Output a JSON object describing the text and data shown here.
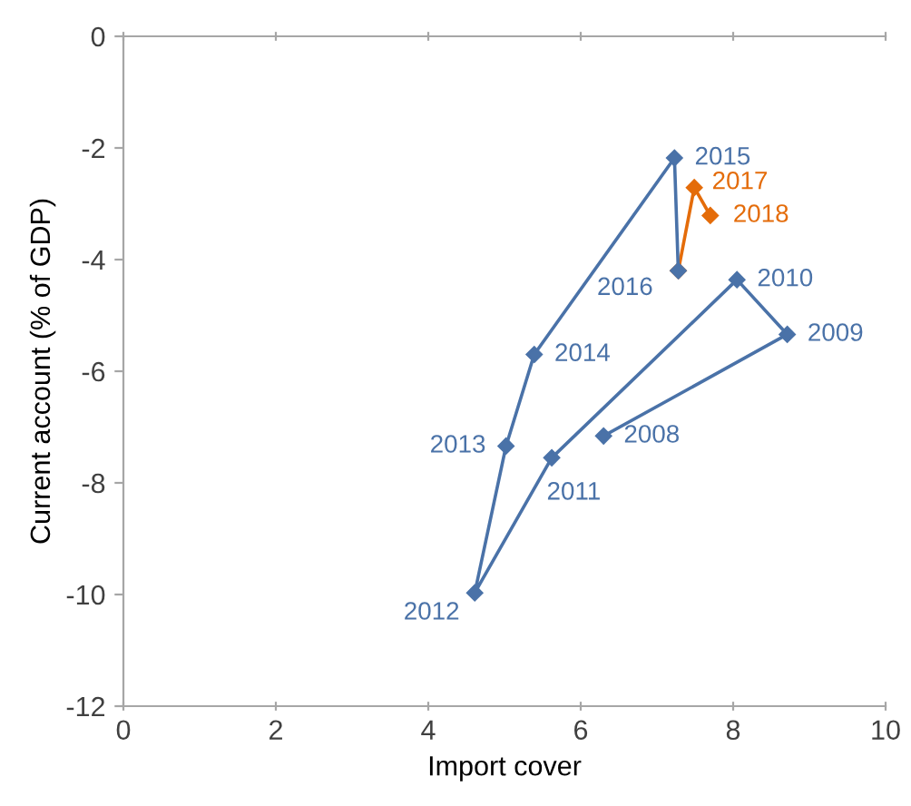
{
  "chart_data": {
    "type": "line",
    "xlabel": "Import cover",
    "ylabel": "Current account (% of GDP)",
    "xlim": [
      0,
      10
    ],
    "xticks": [
      0,
      2,
      4,
      6,
      8,
      10
    ],
    "ylim": [
      -12,
      0
    ],
    "yticks": [
      -12,
      -10,
      -8,
      -6,
      -4,
      -2,
      0
    ],
    "grid": false,
    "legend": false,
    "marker": "diamond",
    "line_style": "solid",
    "series": [
      {
        "color": "#4a72a8",
        "x": [
          6.3,
          8.71,
          8.05,
          5.62,
          4.61,
          5.02,
          5.39,
          7.23,
          7.28
        ],
        "values": [
          -7.16,
          -5.34,
          -4.36,
          -7.55,
          -9.97,
          -7.34,
          -5.7,
          -2.18,
          -4.2
        ]
      },
      {
        "color": "#e46c0a",
        "x": [
          7.28,
          7.49,
          7.7
        ],
        "values": [
          -4.2,
          -2.71,
          -3.21
        ]
      }
    ],
    "annotations": [
      {
        "text": "2008",
        "x": 6.3,
        "y": -7.16
      },
      {
        "text": "2009",
        "x": 8.71,
        "y": -5.34
      },
      {
        "text": "2010",
        "x": 8.05,
        "y": -4.36
      },
      {
        "text": "2011",
        "x": 5.62,
        "y": -7.55
      },
      {
        "text": "2012",
        "x": 4.61,
        "y": -9.97
      },
      {
        "text": "2013",
        "x": 5.02,
        "y": -7.34
      },
      {
        "text": "2014",
        "x": 5.39,
        "y": -5.7
      },
      {
        "text": "2015",
        "x": 7.23,
        "y": -2.18
      },
      {
        "text": "2016",
        "x": 7.28,
        "y": -4.2
      },
      {
        "text": "2017",
        "x": 7.49,
        "y": -2.71
      },
      {
        "text": "2018",
        "x": 7.7,
        "y": -3.21
      }
    ]
  }
}
